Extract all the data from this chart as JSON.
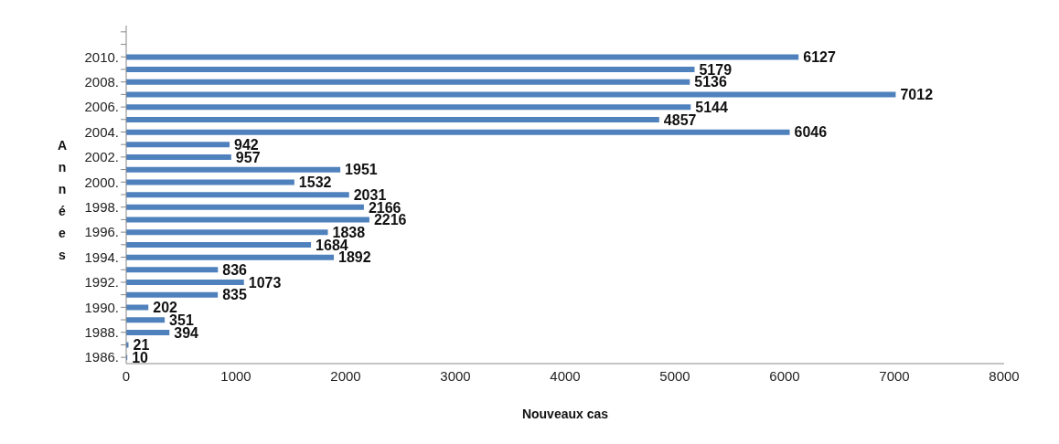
{
  "chart_data": {
    "type": "bar",
    "orientation": "horizontal",
    "xlabel": "Nouveaux cas",
    "ylabel": "Années",
    "categories": [
      null,
      null,
      "2010.",
      null,
      "2008.",
      null,
      "2006.",
      null,
      "2004.",
      null,
      "2002.",
      null,
      "2000.",
      null,
      "1998.",
      null,
      "1996.",
      null,
      "1994.",
      null,
      "1992.",
      null,
      "1990.",
      null,
      "1988.",
      null,
      "1986."
    ],
    "values": [
      null,
      null,
      6127,
      5179,
      5136,
      7012,
      5144,
      4857,
      6046,
      942,
      957,
      1951,
      1532,
      2031,
      2166,
      2216,
      1838,
      1684,
      1892,
      836,
      1073,
      835,
      202,
      351,
      394,
      21,
      10
    ],
    "color": "#4f81bd",
    "xlim": [
      0,
      8000
    ],
    "xticks": [
      0,
      1000,
      2000,
      3000,
      4000,
      5000,
      6000,
      7000,
      8000
    ],
    "data_labels": true
  }
}
